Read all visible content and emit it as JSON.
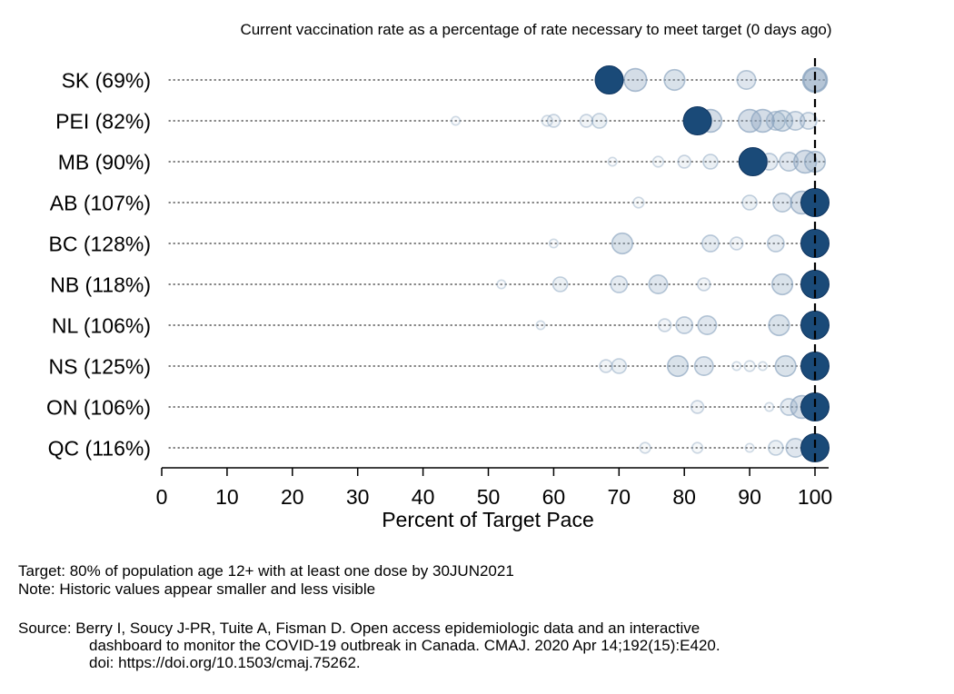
{
  "chart_data": {
    "type": "scatter",
    "title": "Current vaccination rate as a percentage of rate necessary to meet target (0 days ago)",
    "xlabel": "Percent of Target Pace",
    "ylabel": "",
    "xlim": [
      0,
      100
    ],
    "xticks": [
      0,
      10,
      20,
      30,
      40,
      50,
      60,
      70,
      80,
      90,
      100
    ],
    "target_line": 100,
    "grid": "dotted row guides",
    "colors": {
      "current": "#1a4a78",
      "historic": "#8aa4bf",
      "axis": "#000000"
    },
    "categories": [
      "SK (69%)",
      "PEI (82%)",
      "MB (90%)",
      "AB (107%)",
      "BC (128%)",
      "NB (118%)",
      "NL (106%)",
      "NS (125%)",
      "ON (106%)",
      "QC (116%)"
    ],
    "series": [
      {
        "name": "SK",
        "label": "SK (69%)",
        "current": 69,
        "current_plotted": 68.5,
        "historic": [
          [
            100,
            0
          ],
          [
            72.5,
            1
          ],
          [
            78.5,
            2
          ],
          [
            89.5,
            3
          ],
          [
            100,
            1
          ]
        ]
      },
      {
        "name": "PEI",
        "label": "PEI (82%)",
        "current": 82,
        "current_plotted": 82,
        "historic": [
          [
            84,
            1
          ],
          [
            90,
            1
          ],
          [
            92,
            1
          ],
          [
            95,
            2
          ],
          [
            97,
            3
          ],
          [
            99,
            4
          ],
          [
            94,
            3
          ],
          [
            67,
            5
          ],
          [
            65,
            6
          ],
          [
            60,
            6
          ],
          [
            59,
            7
          ],
          [
            45,
            8
          ]
        ]
      },
      {
        "name": "MB",
        "label": "MB (90%)",
        "current": 90,
        "current_plotted": 90.5,
        "historic": [
          [
            91,
            1
          ],
          [
            98.5,
            1
          ],
          [
            100,
            2
          ],
          [
            96,
            3
          ],
          [
            93,
            4
          ],
          [
            84,
            5
          ],
          [
            80,
            6
          ],
          [
            76,
            7
          ],
          [
            69,
            8
          ]
        ]
      },
      {
        "name": "AB",
        "label": "AB (107%)",
        "current": 107,
        "current_plotted": 100,
        "historic": [
          [
            98,
            1
          ],
          [
            95,
            3
          ],
          [
            90,
            5
          ],
          [
            73,
            7
          ]
        ]
      },
      {
        "name": "BC",
        "label": "BC (128%)",
        "current": 128,
        "current_plotted": 100,
        "historic": [
          [
            70.5,
            2
          ],
          [
            84,
            4
          ],
          [
            94,
            4
          ],
          [
            88,
            6
          ],
          [
            60,
            8
          ]
        ]
      },
      {
        "name": "NB",
        "label": "NB (118%)",
        "current": 118,
        "current_plotted": 100,
        "historic": [
          [
            95,
            2
          ],
          [
            76,
            3
          ],
          [
            70,
            4
          ],
          [
            61,
            5
          ],
          [
            83,
            6
          ],
          [
            52,
            8
          ]
        ]
      },
      {
        "name": "NL",
        "label": "NL (106%)",
        "current": 106,
        "current_plotted": 100,
        "historic": [
          [
            94.5,
            2
          ],
          [
            83.5,
            3
          ],
          [
            80,
            4
          ],
          [
            77,
            6
          ],
          [
            58,
            8
          ]
        ]
      },
      {
        "name": "NS",
        "label": "NS (125%)",
        "current": 125,
        "current_plotted": 100,
        "historic": [
          [
            95.5,
            2
          ],
          [
            79,
            2
          ],
          [
            83,
            3
          ],
          [
            70,
            5
          ],
          [
            68,
            6
          ],
          [
            90,
            7
          ],
          [
            88,
            8
          ],
          [
            92,
            8
          ]
        ]
      },
      {
        "name": "ON",
        "label": "ON (106%)",
        "current": 106,
        "current_plotted": 100,
        "historic": [
          [
            98,
            1
          ],
          [
            96,
            4
          ],
          [
            82,
            6
          ],
          [
            93,
            8
          ]
        ]
      },
      {
        "name": "QC",
        "label": "QC (116%)",
        "current": 116,
        "current_plotted": 100,
        "historic": [
          [
            97,
            3
          ],
          [
            94,
            5
          ],
          [
            74,
            7
          ],
          [
            82,
            7
          ],
          [
            90,
            8
          ]
        ]
      }
    ]
  },
  "notes": {
    "target": "Target: 80% of population age 12+ with at least one dose by 30JUN2021",
    "historic": "Note: Historic values appear smaller and less visible",
    "source_line1": "Source: Berry I, Soucy J-PR, Tuite A, Fisman D. Open access epidemiologic data and an interactive",
    "source_line2": "dashboard to monitor the COVID-19 outbreak in Canada. CMAJ. 2020 Apr 14;192(15):E420.",
    "source_line3": "doi: https://doi.org/10.1503/cmaj.75262."
  }
}
